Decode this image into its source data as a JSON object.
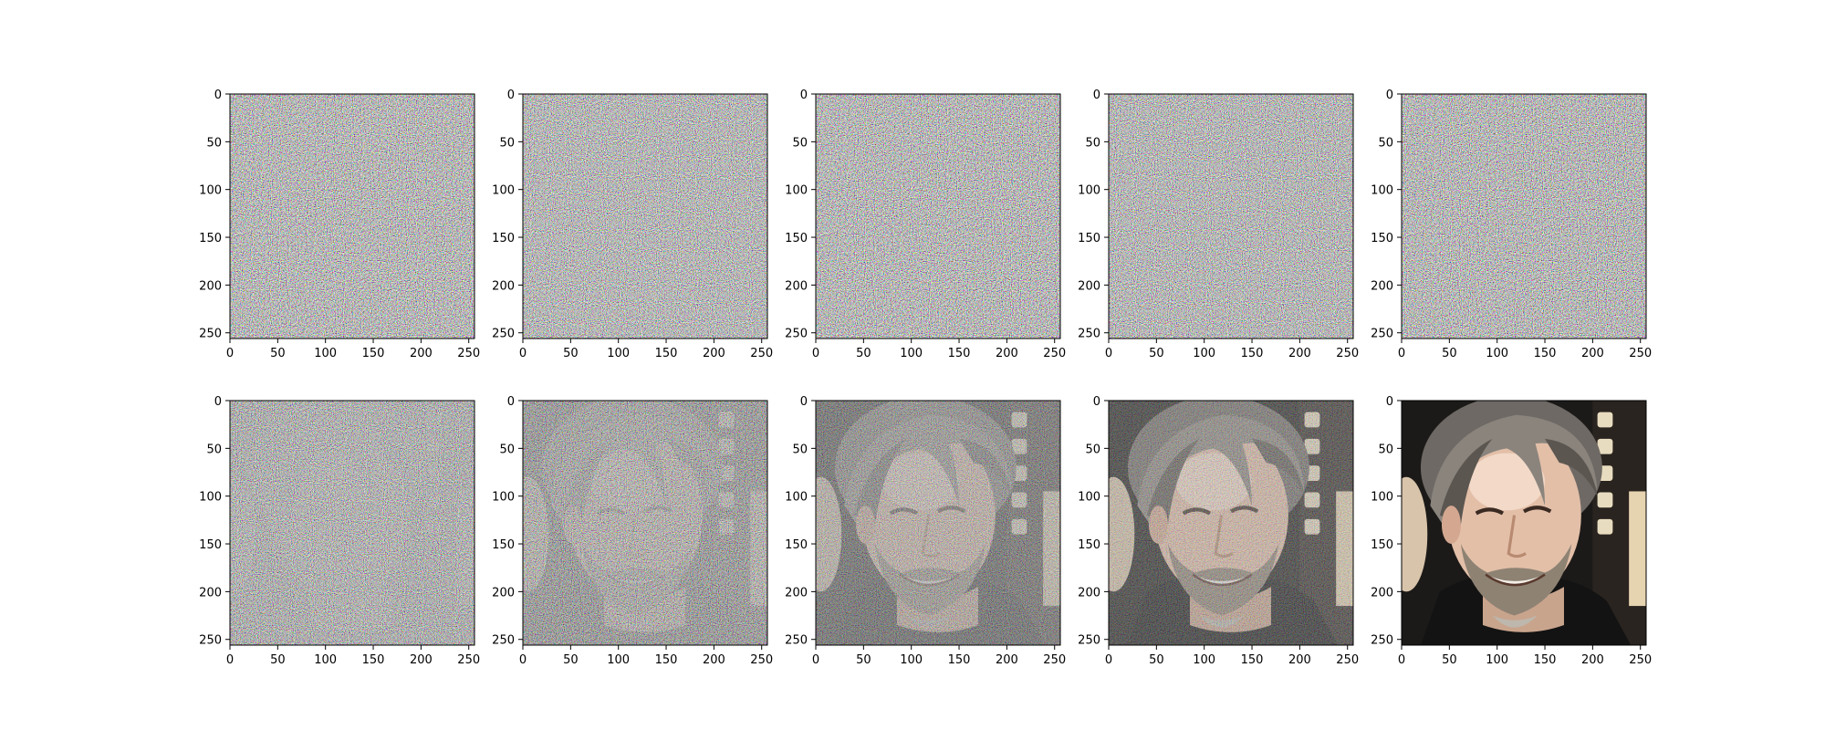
{
  "chart_data": {
    "type": "image-grid",
    "grid": {
      "rows": 2,
      "cols": 5
    },
    "panels": [
      {
        "row": 0,
        "col": 0,
        "content": "noise",
        "signal": 0.0,
        "noise": 1.0
      },
      {
        "row": 0,
        "col": 1,
        "content": "noise",
        "signal": 0.0,
        "noise": 1.0
      },
      {
        "row": 0,
        "col": 2,
        "content": "noise",
        "signal": 0.0,
        "noise": 1.0
      },
      {
        "row": 0,
        "col": 3,
        "content": "noise",
        "signal": 0.0,
        "noise": 1.0
      },
      {
        "row": 0,
        "col": 4,
        "content": "noise",
        "signal": 0.02,
        "noise": 1.0
      },
      {
        "row": 1,
        "col": 0,
        "content": "noisy-face",
        "signal": 0.2,
        "noise": 0.9
      },
      {
        "row": 1,
        "col": 1,
        "content": "noisy-face",
        "signal": 0.4,
        "noise": 0.75
      },
      {
        "row": 1,
        "col": 2,
        "content": "noisy-face",
        "signal": 0.6,
        "noise": 0.55
      },
      {
        "row": 1,
        "col": 3,
        "content": "noisy-face",
        "signal": 0.8,
        "noise": 0.35
      },
      {
        "row": 1,
        "col": 4,
        "content": "face",
        "signal": 1.0,
        "noise": 0.0
      }
    ],
    "xlim": [
      0,
      256
    ],
    "ylim": [
      256,
      0
    ],
    "x_ticks": [
      0,
      50,
      100,
      150,
      200,
      250
    ],
    "y_ticks": [
      0,
      50,
      100,
      150,
      200,
      250
    ],
    "grid_lines": false,
    "legend": "none",
    "title": "",
    "xlabel": "",
    "ylabel": ""
  }
}
